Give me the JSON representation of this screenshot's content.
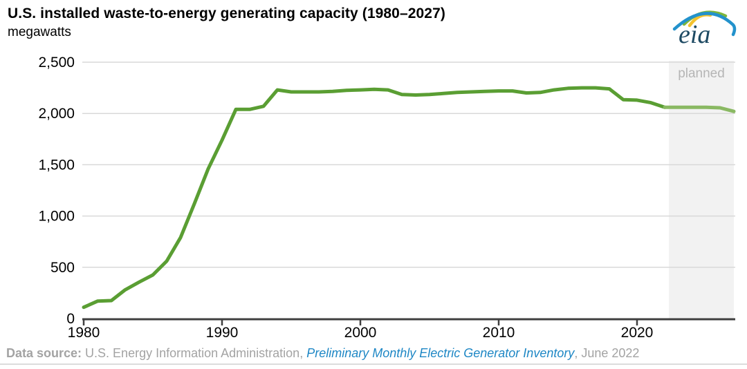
{
  "header": {
    "title": "U.S. installed waste-to-energy generating capacity (1980–2027)",
    "subtitle": "megawatts",
    "logo_text": "eia"
  },
  "chart_data": {
    "type": "line",
    "title": "U.S. installed waste-to-energy generating capacity (1980–2027)",
    "ylabel": "megawatts",
    "xlabel": "",
    "x": [
      1980,
      1981,
      1982,
      1983,
      1984,
      1985,
      1986,
      1987,
      1988,
      1989,
      1990,
      1991,
      1992,
      1993,
      1994,
      1995,
      1996,
      1997,
      1998,
      1999,
      2000,
      2001,
      2002,
      2003,
      2004,
      2005,
      2006,
      2007,
      2008,
      2009,
      2010,
      2011,
      2012,
      2013,
      2014,
      2015,
      2016,
      2017,
      2018,
      2019,
      2020,
      2021,
      2022,
      2023,
      2024,
      2025,
      2026,
      2027
    ],
    "series": [
      {
        "name": "installed waste-to-energy capacity (megawatts)",
        "values": [
          110,
          170,
          175,
          280,
          355,
          425,
          560,
          790,
          1120,
          1460,
          1740,
          2040,
          2040,
          2070,
          2230,
          2210,
          2210,
          2210,
          2215,
          2225,
          2230,
          2235,
          2230,
          2185,
          2180,
          2185,
          2195,
          2205,
          2210,
          2215,
          2220,
          2220,
          2200,
          2205,
          2230,
          2245,
          2250,
          2250,
          2240,
          2135,
          2130,
          2105,
          2060,
          2060,
          2060,
          2060,
          2055,
          2020
        ]
      }
    ],
    "ylim": [
      0,
      2500
    ],
    "yticks": [
      0,
      500,
      1000,
      1500,
      2000,
      2500
    ],
    "ytick_labels": [
      "0",
      "500",
      "1,000",
      "1,500",
      "2,000",
      "2,500"
    ],
    "xticks": [
      1980,
      1990,
      2000,
      2010,
      2020
    ],
    "xtick_labels": [
      "1980",
      "1990",
      "2000",
      "2010",
      "2020"
    ],
    "grid": "horizontal",
    "legend_position": "none",
    "line_color": "#5a9e33",
    "planned_line_color": "#8ab963",
    "gridline_color": "#d9d9d9",
    "axis_color": "#3f3f3f",
    "tick_label_color": "#000000",
    "planned_region": {
      "label": "planned",
      "start_year": 2022.3,
      "end_year": 2027,
      "fill": "#f2f2f2",
      "label_color": "#b5b5b5"
    }
  },
  "footer": {
    "prefix_bold": "Data source:",
    "source_text": " U.S. Energy Information Administration, ",
    "link_text": "Preliminary Monthly Electric Generator Inventory",
    "suffix_text": ", June 2022",
    "link_color": "#1e87c5"
  }
}
